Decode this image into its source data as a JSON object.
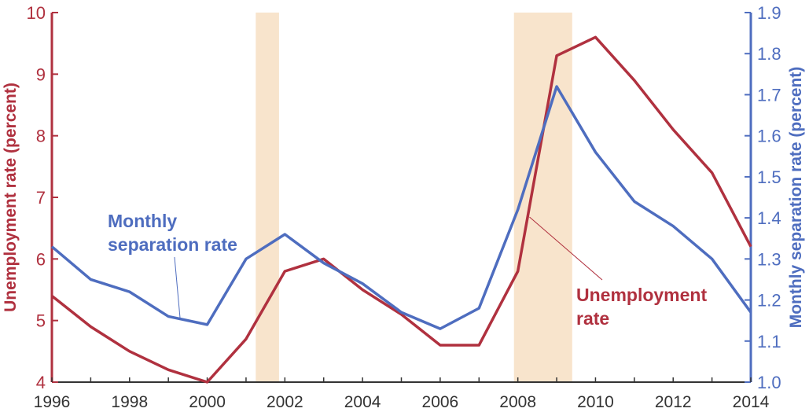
{
  "chart_data": {
    "type": "line",
    "title": "",
    "xlabel": "",
    "ylabel_left": "Unemployment rate (percent)",
    "ylabel_right": "Monthly separation rate (percent)",
    "x": [
      1996,
      1997,
      1998,
      1999,
      2000,
      2001,
      2002,
      2003,
      2004,
      2005,
      2006,
      2007,
      2008,
      2009,
      2010,
      2011,
      2012,
      2013,
      2014
    ],
    "xlim": [
      1996,
      2014
    ],
    "ylim_left": [
      4,
      10
    ],
    "ylim_right": [
      1.0,
      1.9
    ],
    "x_ticks": [
      "1996",
      "1998",
      "2000",
      "2002",
      "2004",
      "2006",
      "2008",
      "2010",
      "2012",
      "2014"
    ],
    "y_ticks_left": [
      "4",
      "5",
      "6",
      "7",
      "8",
      "9",
      "10"
    ],
    "y_ticks_right": [
      "1.0",
      "1.1",
      "1.2",
      "1.3",
      "1.4",
      "1.5",
      "1.6",
      "1.7",
      "1.8",
      "1.9"
    ],
    "series": [
      {
        "name": "Unemployment rate",
        "axis": "left",
        "color": "#b0313f",
        "values": [
          5.4,
          4.9,
          4.5,
          4.2,
          4.0,
          4.7,
          5.8,
          6.0,
          5.5,
          5.1,
          4.6,
          4.6,
          5.8,
          9.3,
          9.6,
          8.9,
          8.1,
          7.4,
          6.2
        ]
      },
      {
        "name": "Monthly separation rate",
        "axis": "right",
        "color": "#4e6dbf",
        "values": [
          1.33,
          1.25,
          1.22,
          1.16,
          1.14,
          1.3,
          1.36,
          1.29,
          1.24,
          1.17,
          1.13,
          1.18,
          1.42,
          1.72,
          1.56,
          1.44,
          1.38,
          1.3,
          1.17
        ]
      }
    ],
    "shaded_periods": [
      {
        "start": 2001.25,
        "end": 2001.85
      },
      {
        "start": 2007.9,
        "end": 2009.4
      }
    ],
    "annotations": {
      "separation": {
        "lines": [
          "Monthly",
          "separation rate"
        ],
        "points_to_x": 1999.3
      },
      "unemployment": {
        "lines": [
          "Unemployment",
          "rate"
        ],
        "points_to_x": 2008.3
      }
    },
    "colors": {
      "left_axis": "#b0313f",
      "right_axis": "#4e6dbf",
      "shading": "#f8e4cc",
      "x_axis": "#333333"
    },
    "grid": false
  }
}
